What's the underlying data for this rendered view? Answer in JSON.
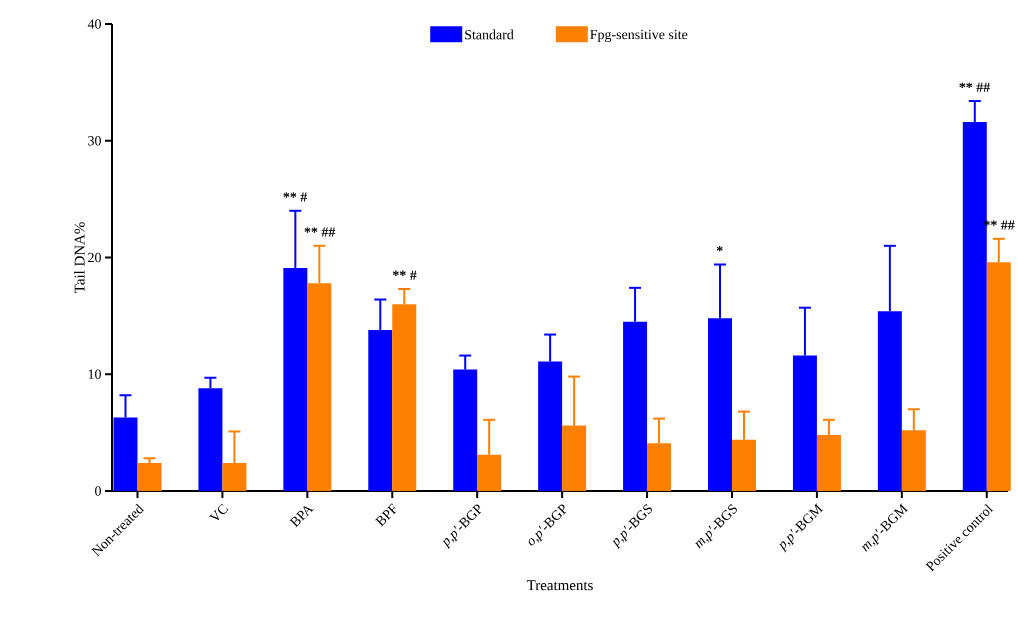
{
  "chart_data": {
    "type": "bar",
    "xlabel": "Treatments",
    "ylabel": "Tail DNA%",
    "categories": [
      "Non-treated",
      "VC",
      "BPA",
      "BPF",
      "*p,p′*-BGP",
      "*o,p′*-BGP",
      "*p,p′*-BGS",
      "*m,p′*-BGS",
      "*p,p′*-BGM",
      "*m,p′*-BGM",
      "Positive control"
    ],
    "series": [
      {
        "name": "Standard",
        "color": "#0000ff",
        "values": [
          6.3,
          8.8,
          19.1,
          13.8,
          10.4,
          11.1,
          14.5,
          14.8,
          11.6,
          15.4,
          31.6
        ],
        "errors": [
          1.9,
          0.9,
          4.9,
          2.6,
          1.2,
          2.3,
          2.9,
          4.6,
          4.1,
          5.6,
          1.8
        ]
      },
      {
        "name": "Fpg-sensitive site",
        "color": "#ff8000",
        "values": [
          2.4,
          2.4,
          17.8,
          16.0,
          3.1,
          5.6,
          4.1,
          4.4,
          4.8,
          5.2,
          19.6
        ],
        "errors": [
          0.4,
          2.7,
          3.2,
          1.3,
          3.0,
          4.2,
          2.1,
          2.4,
          1.3,
          1.8,
          2.0
        ]
      }
    ],
    "ylim": [
      0,
      40
    ],
    "yticks": [
      0,
      10,
      20,
      30,
      40
    ],
    "grid": false,
    "legend": "top",
    "annotations": [
      "** #",
      "** ##",
      "** #",
      "*",
      "** ##",
      "** ##"
    ]
  }
}
